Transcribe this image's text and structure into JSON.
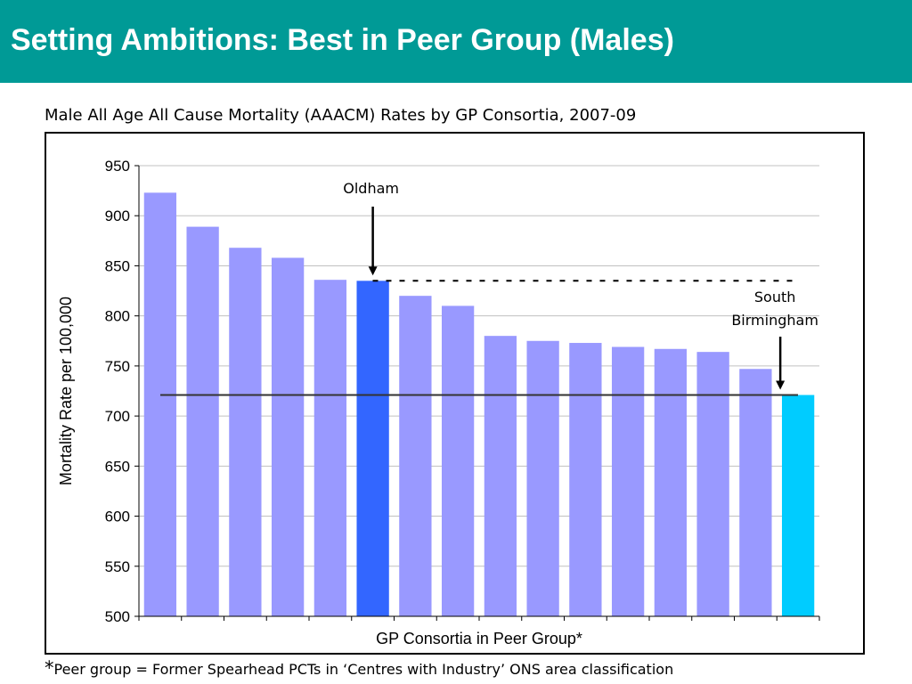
{
  "slide": {
    "title": "Setting Ambitions: Best in Peer Group (Males)",
    "header_color": "#009a96"
  },
  "chart_title": "Male All Age All Cause Mortality (AAACM) Rates by GP Consortia, 2007-09",
  "footnote": {
    "star": "*",
    "text": "Peer group = Former Spearhead PCTs in ‘Centres with Industry’ ONS area classification"
  },
  "chart_data": {
    "type": "bar",
    "title": "Male All Age All Cause Mortality (AAACM) Rates by GP Consortia, 2007-09",
    "xlabel": "GP Consortia in Peer Group*",
    "ylabel": "Mortality Rate per 100,000",
    "ylim": [
      500,
      950
    ],
    "yticks": [
      500,
      550,
      600,
      650,
      700,
      750,
      800,
      850,
      900,
      950
    ],
    "grid": true,
    "categories": [
      "",
      "",
      "",
      "",
      "",
      "",
      "",
      "",
      "",
      "",
      "",
      "",
      "",
      "",
      "",
      ""
    ],
    "values": [
      923,
      889,
      868,
      858,
      836,
      835,
      820,
      810,
      780,
      775,
      773,
      769,
      767,
      764,
      747,
      721
    ],
    "colors": {
      "default": "#9999ff",
      "highlight_oldham": "#3366ff",
      "highlight_south_birmingham": "#00ccff"
    },
    "highlights": [
      {
        "index": 5,
        "label": "Oldham",
        "color_key": "highlight_oldham"
      },
      {
        "index": 15,
        "label": "South Birmingham",
        "color_key": "highlight_south_birmingham"
      }
    ],
    "reference_lines": [
      {
        "value": 835,
        "style": "dashed"
      },
      {
        "value": 721,
        "style": "solid"
      }
    ],
    "annotations": [
      {
        "text": "Oldham"
      },
      {
        "text": "South"
      },
      {
        "text": "Birmingham"
      }
    ]
  }
}
